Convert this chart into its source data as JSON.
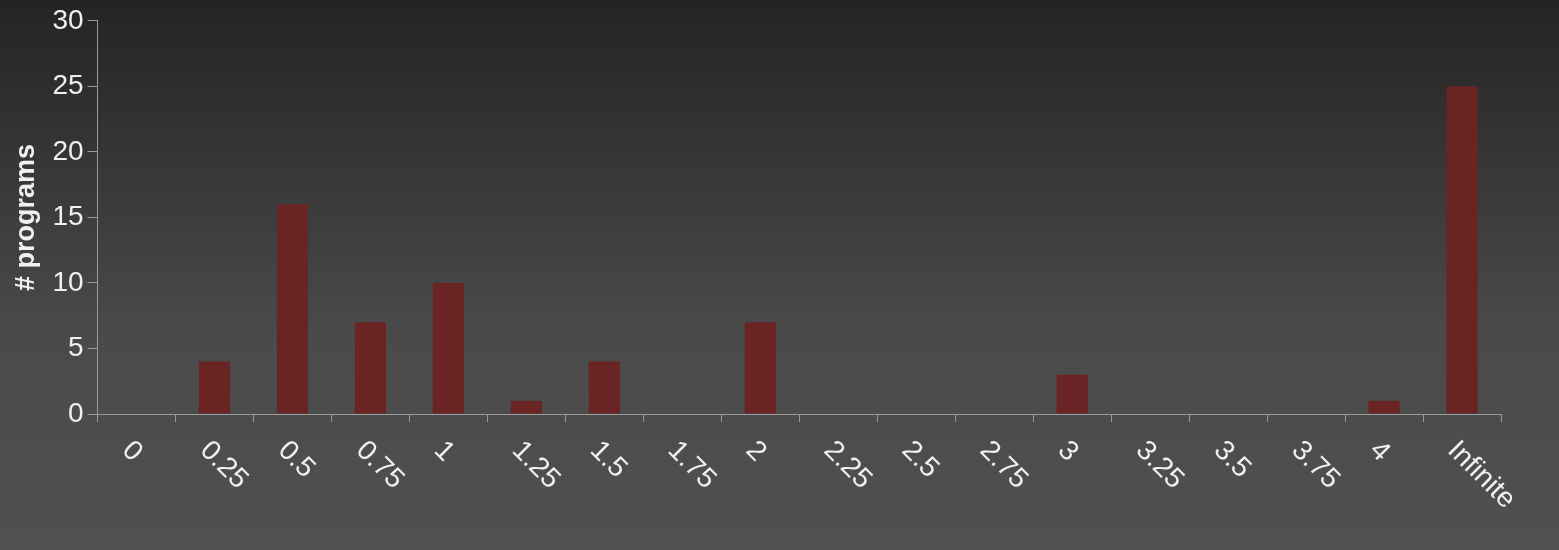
{
  "chart_data": {
    "type": "bar",
    "ylabel": "# programs",
    "categories": [
      "0",
      "0.25",
      "0.5",
      "0.75",
      "1",
      "1.25",
      "1.5",
      "1.75",
      "2",
      "2.25",
      "2.5",
      "2.75",
      "3",
      "3.25",
      "3.5",
      "3.75",
      "4",
      "Infinite"
    ],
    "values": [
      0,
      4,
      16,
      7,
      10,
      1,
      4,
      0,
      7,
      0,
      0,
      0,
      3,
      0,
      0,
      0,
      1,
      25
    ],
    "color": "#6b2424",
    "ylim": [
      0,
      30
    ],
    "yticks": [
      0,
      5,
      10,
      15,
      20,
      25,
      30
    ],
    "grid": false,
    "legend": false
  }
}
